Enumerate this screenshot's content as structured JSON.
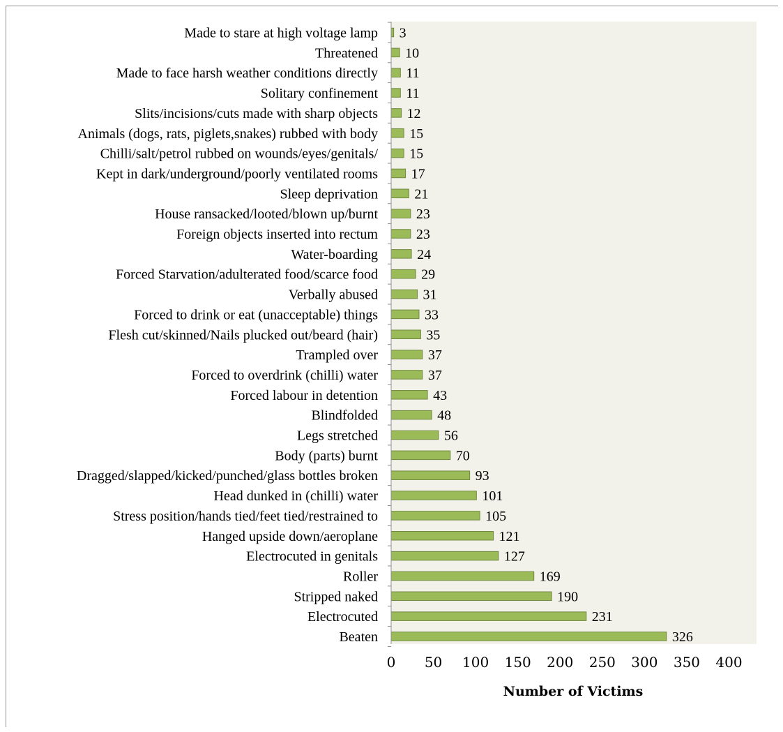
{
  "chart_data": {
    "type": "bar",
    "orientation": "horizontal",
    "title": "",
    "xlabel": "Number of Victims",
    "ylabel": "",
    "xlim": [
      0,
      400
    ],
    "x_ticks": [
      0,
      50,
      100,
      150,
      200,
      250,
      300,
      350,
      400
    ],
    "grid": false,
    "legend": "none",
    "bar_color": "#9bbb59",
    "bar_edge_color": "#71893f",
    "plot_background": "#f2f2ea",
    "categories": [
      "Made to stare at high voltage lamp",
      "Threatened",
      "Made to face harsh weather conditions directly",
      "Solitary confinement",
      "Slits/incisions/cuts made with sharp objects",
      "Animals (dogs, rats, piglets,snakes) rubbed with body",
      "Chilli/salt/petrol rubbed on wounds/eyes/genitals/",
      "Kept in dark/underground/poorly ventilated rooms",
      "Sleep deprivation",
      "House ransacked/looted/blown up/burnt",
      "Foreign objects inserted into rectum",
      "Water-boarding",
      "Forced Starvation/adulterated food/scarce food",
      "Verbally abused",
      "Forced to drink or eat (unacceptable) things",
      "Flesh cut/skinned/Nails plucked out/beard (hair)",
      "Trampled over",
      "Forced to overdrink (chilli) water",
      "Forced labour in detention",
      "Blindfolded",
      "Legs stretched",
      "Body (parts) burnt",
      "Dragged/slapped/kicked/punched/glass bottles broken",
      "Head dunked in (chilli) water",
      "Stress position/hands tied/feet tied/restrained to",
      "Hanged upside down/aeroplane",
      "Electrocuted in genitals",
      "Roller",
      "Stripped naked",
      "Electrocuted",
      "Beaten"
    ],
    "values": [
      3,
      10,
      11,
      11,
      12,
      15,
      15,
      17,
      21,
      23,
      23,
      24,
      29,
      31,
      33,
      35,
      37,
      37,
      43,
      48,
      56,
      70,
      93,
      101,
      105,
      121,
      127,
      169,
      190,
      231,
      326
    ]
  }
}
